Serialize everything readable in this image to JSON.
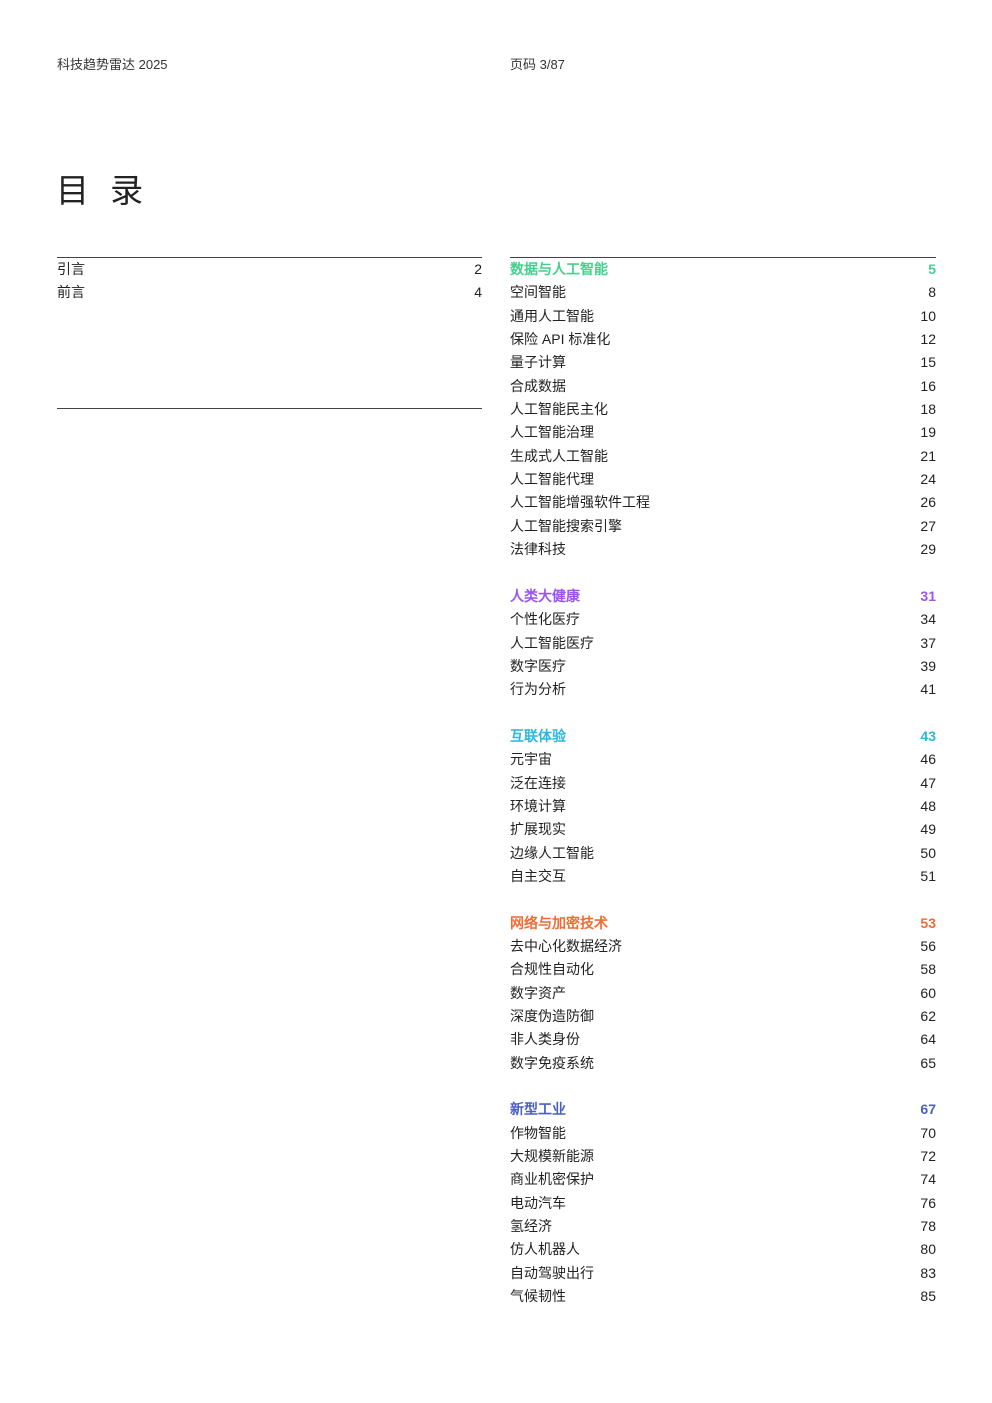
{
  "header": {
    "doc_title": "科技趋势雷达 2025",
    "page": "页码 3/87"
  },
  "title": "目 录",
  "intro": [
    {
      "label": "引言",
      "page": "2"
    },
    {
      "label": "前言",
      "page": "4"
    }
  ],
  "sections": [
    {
      "title": "数据与人工智能",
      "page": "5",
      "color": "#45d08e",
      "items": [
        {
          "label": "空间智能",
          "page": "8"
        },
        {
          "label": "通用人工智能",
          "page": "10"
        },
        {
          "label": "保险 API 标准化",
          "page": "12"
        },
        {
          "label": "量子计算",
          "page": "15"
        },
        {
          "label": "合成数据",
          "page": "16"
        },
        {
          "label": "人工智能民主化",
          "page": "18"
        },
        {
          "label": "人工智能治理",
          "page": "19"
        },
        {
          "label": "生成式人工智能",
          "page": "21"
        },
        {
          "label": "人工智能代理",
          "page": "24"
        },
        {
          "label": "人工智能增强软件工程",
          "page": "26"
        },
        {
          "label": "人工智能搜索引擎",
          "page": "27"
        },
        {
          "label": "法律科技",
          "page": "29"
        }
      ]
    },
    {
      "title": "人类大健康",
      "page": "31",
      "color": "#9b55ef",
      "items": [
        {
          "label": "个性化医疗",
          "page": "34"
        },
        {
          "label": "人工智能医疗",
          "page": "37"
        },
        {
          "label": "数字医疗",
          "page": "39"
        },
        {
          "label": "行为分析",
          "page": "41"
        }
      ]
    },
    {
      "title": "互联体验",
      "page": "43",
      "color": "#2db7dc",
      "items": [
        {
          "label": "元宇宙",
          "page": "46"
        },
        {
          "label": "泛在连接",
          "page": "47"
        },
        {
          "label": "环境计算",
          "page": "48"
        },
        {
          "label": "扩展现实",
          "page": "49"
        },
        {
          "label": "边缘人工智能",
          "page": "50"
        },
        {
          "label": "自主交互",
          "page": "51"
        }
      ]
    },
    {
      "title": "网络与加密技术",
      "page": "53",
      "color": "#f26a36",
      "items": [
        {
          "label": "去中心化数据经济",
          "page": "56"
        },
        {
          "label": "合规性自动化",
          "page": "58"
        },
        {
          "label": "数字资产",
          "page": "60"
        },
        {
          "label": "深度伪造防御",
          "page": "62"
        },
        {
          "label": "非人类身份",
          "page": "64"
        },
        {
          "label": "数字免疫系统",
          "page": "65"
        }
      ]
    },
    {
      "title": "新型工业",
      "page": "67",
      "color": "#4a5fc4",
      "items": [
        {
          "label": "作物智能",
          "page": "70"
        },
        {
          "label": "大规模新能源",
          "page": "72"
        },
        {
          "label": "商业机密保护",
          "page": "74"
        },
        {
          "label": "电动汽车",
          "page": "76"
        },
        {
          "label": "氢经济",
          "page": "78"
        },
        {
          "label": "仿人机器人",
          "page": "80"
        },
        {
          "label": "自动驾驶出行",
          "page": "83"
        },
        {
          "label": "气候韧性",
          "page": "85"
        }
      ]
    }
  ]
}
